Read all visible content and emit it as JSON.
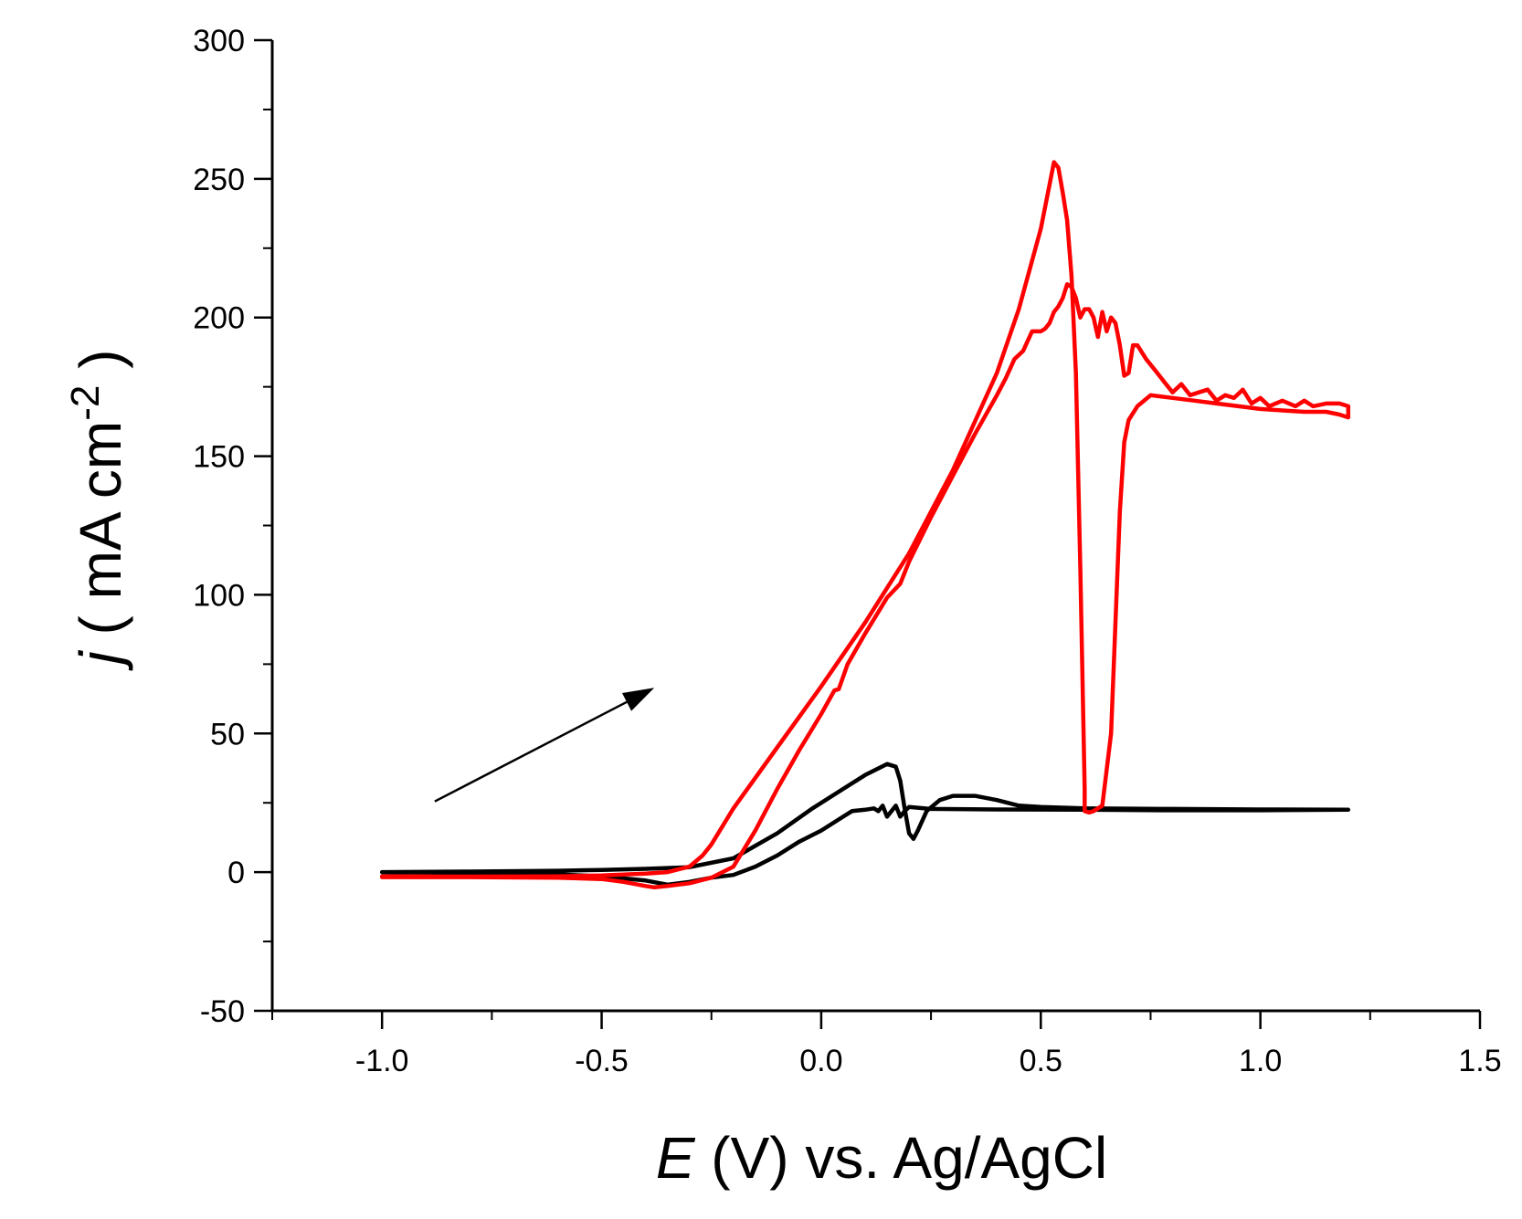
{
  "chart_data": {
    "type": "line",
    "title": "",
    "xlabel": {
      "italic": "E",
      "rest": " (V) vs. Ag/AgCl"
    },
    "ylabel": {
      "italic": "j",
      "rest": " ( mA cm",
      "sup": "-2",
      "close": " )"
    },
    "xlim": [
      -1.25,
      1.5
    ],
    "ylim": [
      -50,
      300
    ],
    "x_ticks": [
      "-1.0",
      "-0.5",
      "0.0",
      "0.5",
      "1.0",
      "1.5"
    ],
    "x_tick_values": [
      -1.0,
      -0.5,
      0.0,
      0.5,
      1.0,
      1.5
    ],
    "y_ticks": [
      "-50",
      "0",
      "50",
      "100",
      "150",
      "200",
      "250",
      "300"
    ],
    "y_tick_values": [
      -50,
      0,
      50,
      100,
      150,
      200,
      250,
      300
    ],
    "grid": false,
    "legend": "none",
    "annotation": {
      "type": "arrow",
      "from": [
        -0.88,
        25.5
      ],
      "to": [
        -0.38,
        66.5
      ]
    },
    "series": [
      {
        "color": "#000000",
        "points": [
          [
            -1.0,
            0.0
          ],
          [
            -0.8,
            0.2
          ],
          [
            -0.6,
            0.5
          ],
          [
            -0.5,
            0.8
          ],
          [
            -0.4,
            1.2
          ],
          [
            -0.3,
            1.8
          ],
          [
            -0.2,
            5
          ],
          [
            -0.1,
            14
          ],
          [
            -0.02,
            23
          ],
          [
            0.05,
            30
          ],
          [
            0.1,
            35
          ],
          [
            0.15,
            39
          ],
          [
            0.17,
            38
          ],
          [
            0.18,
            33
          ],
          [
            0.19,
            23
          ],
          [
            0.2,
            14
          ],
          [
            0.21,
            12
          ],
          [
            0.22,
            15
          ],
          [
            0.24,
            22
          ],
          [
            0.27,
            26
          ],
          [
            0.3,
            27.5
          ],
          [
            0.35,
            27.5
          ],
          [
            0.4,
            26
          ],
          [
            0.45,
            24
          ],
          [
            0.5,
            23.5
          ],
          [
            0.6,
            23
          ],
          [
            0.8,
            22.8
          ],
          [
            1.0,
            22.6
          ],
          [
            1.2,
            22.5
          ],
          [
            1.0,
            22.3
          ],
          [
            0.8,
            22.3
          ],
          [
            0.6,
            22.5
          ],
          [
            0.4,
            22.6
          ],
          [
            0.25,
            22.8
          ],
          [
            0.2,
            23.5
          ],
          [
            0.19,
            22
          ],
          [
            0.18,
            20
          ],
          [
            0.17,
            24
          ],
          [
            0.16,
            22
          ],
          [
            0.15,
            20
          ],
          [
            0.14,
            24
          ],
          [
            0.13,
            22
          ],
          [
            0.12,
            23
          ],
          [
            0.1,
            22.5
          ],
          [
            0.07,
            22
          ],
          [
            0.05,
            20
          ],
          [
            0.0,
            15
          ],
          [
            -0.05,
            11
          ],
          [
            -0.1,
            6
          ],
          [
            -0.15,
            2
          ],
          [
            -0.2,
            -1
          ],
          [
            -0.25,
            -2
          ],
          [
            -0.3,
            -3.5
          ],
          [
            -0.35,
            -4.5
          ],
          [
            -0.4,
            -3
          ],
          [
            -0.5,
            -1.5
          ],
          [
            -0.6,
            -0.8
          ],
          [
            -0.8,
            -0.3
          ],
          [
            -1.0,
            0.0
          ]
        ]
      },
      {
        "color": "#ff0000",
        "points": [
          [
            -1.0,
            -1.5
          ],
          [
            -0.8,
            -1.6
          ],
          [
            -0.6,
            -1.5
          ],
          [
            -0.5,
            -1.2
          ],
          [
            -0.4,
            -0.5
          ],
          [
            -0.35,
            0
          ],
          [
            -0.3,
            2
          ],
          [
            -0.27,
            6
          ],
          [
            -0.25,
            10
          ],
          [
            -0.2,
            23
          ],
          [
            -0.1,
            45
          ],
          [
            0.0,
            67
          ],
          [
            0.1,
            90
          ],
          [
            0.2,
            115
          ],
          [
            0.3,
            145
          ],
          [
            0.4,
            180
          ],
          [
            0.45,
            203
          ],
          [
            0.5,
            232
          ],
          [
            0.52,
            248
          ],
          [
            0.53,
            256
          ],
          [
            0.54,
            254
          ],
          [
            0.55,
            245
          ],
          [
            0.56,
            235
          ],
          [
            0.57,
            215
          ],
          [
            0.58,
            180
          ],
          [
            0.59,
            110
          ],
          [
            0.6,
            30
          ],
          [
            0.6,
            22
          ],
          [
            0.61,
            21.5
          ],
          [
            0.62,
            22
          ],
          [
            0.64,
            24
          ],
          [
            0.66,
            50
          ],
          [
            0.67,
            90
          ],
          [
            0.68,
            130
          ],
          [
            0.69,
            155
          ],
          [
            0.7,
            163
          ],
          [
            0.72,
            168
          ],
          [
            0.75,
            172
          ],
          [
            0.8,
            171
          ],
          [
            0.85,
            170
          ],
          [
            0.9,
            169
          ],
          [
            0.95,
            168
          ],
          [
            1.0,
            167
          ],
          [
            1.05,
            166.5
          ],
          [
            1.1,
            166
          ],
          [
            1.15,
            166
          ],
          [
            1.18,
            165
          ],
          [
            1.2,
            164
          ],
          [
            1.2,
            168
          ],
          [
            1.18,
            169
          ],
          [
            1.15,
            169
          ],
          [
            1.12,
            168
          ],
          [
            1.1,
            170
          ],
          [
            1.08,
            168
          ],
          [
            1.05,
            170
          ],
          [
            1.02,
            168
          ],
          [
            1.0,
            171
          ],
          [
            0.98,
            169
          ],
          [
            0.96,
            174
          ],
          [
            0.94,
            171
          ],
          [
            0.92,
            172
          ],
          [
            0.9,
            170
          ],
          [
            0.88,
            174
          ],
          [
            0.86,
            173
          ],
          [
            0.84,
            172
          ],
          [
            0.82,
            176
          ],
          [
            0.8,
            173
          ],
          [
            0.78,
            177
          ],
          [
            0.76,
            181
          ],
          [
            0.74,
            185
          ],
          [
            0.72,
            190
          ],
          [
            0.71,
            190
          ],
          [
            0.7,
            180
          ],
          [
            0.69,
            179
          ],
          [
            0.68,
            190
          ],
          [
            0.67,
            198
          ],
          [
            0.66,
            200
          ],
          [
            0.65,
            195
          ],
          [
            0.64,
            202
          ],
          [
            0.63,
            193
          ],
          [
            0.62,
            200
          ],
          [
            0.61,
            203
          ],
          [
            0.6,
            203
          ],
          [
            0.59,
            200
          ],
          [
            0.58,
            207
          ],
          [
            0.57,
            211
          ],
          [
            0.56,
            212
          ],
          [
            0.55,
            207
          ],
          [
            0.54,
            204
          ],
          [
            0.53,
            202
          ],
          [
            0.52,
            198
          ],
          [
            0.51,
            196
          ],
          [
            0.5,
            195
          ],
          [
            0.48,
            195
          ],
          [
            0.46,
            188
          ],
          [
            0.44,
            185
          ],
          [
            0.42,
            178
          ],
          [
            0.4,
            172
          ],
          [
            0.35,
            158
          ],
          [
            0.3,
            143
          ],
          [
            0.25,
            128
          ],
          [
            0.2,
            112
          ],
          [
            0.18,
            104
          ],
          [
            0.15,
            99
          ],
          [
            0.1,
            86
          ],
          [
            0.06,
            75
          ],
          [
            0.04,
            66
          ],
          [
            0.03,
            65.5
          ],
          [
            0.0,
            57
          ],
          [
            -0.05,
            44
          ],
          [
            -0.1,
            30
          ],
          [
            -0.15,
            15
          ],
          [
            -0.2,
            2
          ],
          [
            -0.25,
            -2
          ],
          [
            -0.3,
            -4
          ],
          [
            -0.35,
            -5
          ],
          [
            -0.38,
            -5.5
          ],
          [
            -0.4,
            -5
          ],
          [
            -0.45,
            -3.5
          ],
          [
            -0.5,
            -2.5
          ],
          [
            -0.6,
            -2
          ],
          [
            -0.8,
            -1.8
          ],
          [
            -1.0,
            -1.8
          ]
        ]
      }
    ]
  }
}
